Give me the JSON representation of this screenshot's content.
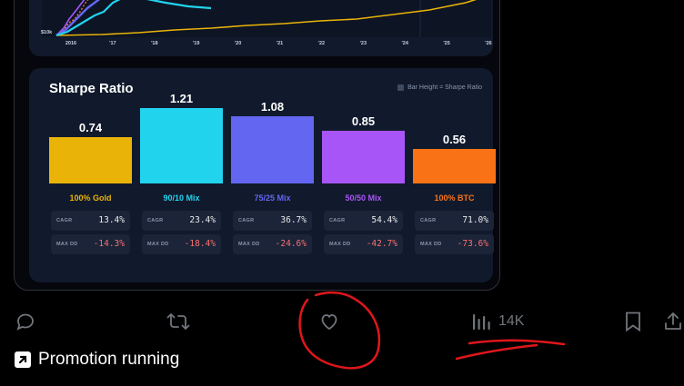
{
  "top_chart": {
    "y_label": "$10k",
    "x_ticks": [
      "2016",
      "'17",
      "'18",
      "'19",
      "'20",
      "'21",
      "'22",
      "'23",
      "'24",
      "'25",
      "'26"
    ]
  },
  "sharpe": {
    "title": "Sharpe Ratio",
    "legend": "Bar Height = Sharpe Ratio",
    "colors": {
      "gold": "#eab308",
      "mix90": "#22d3ee",
      "mix75": "#6366f1",
      "mix50": "#a855f7",
      "btc": "#f97316"
    },
    "stat_labels": {
      "cagr": "CAGR",
      "maxdd": "MAX DD"
    },
    "portfolios": [
      {
        "name": "100% Gold",
        "sharpe": "0.74",
        "cagr": "13.4%",
        "maxdd": "-14.3%"
      },
      {
        "name": "90/10 Mix",
        "sharpe": "1.21",
        "cagr": "23.4%",
        "maxdd": "-18.4%"
      },
      {
        "name": "75/25 Mix",
        "sharpe": "1.08",
        "cagr": "36.7%",
        "maxdd": "-24.6%"
      },
      {
        "name": "50/50 Mix",
        "sharpe": "0.85",
        "cagr": "54.4%",
        "maxdd": "-42.7%"
      },
      {
        "name": "100% BTC",
        "sharpe": "0.56",
        "cagr": "71.0%",
        "maxdd": "-73.6%"
      }
    ]
  },
  "actions": {
    "views": "14K"
  },
  "promo": {
    "label": "Promotion running"
  },
  "annotation_color": "#e0161b"
}
